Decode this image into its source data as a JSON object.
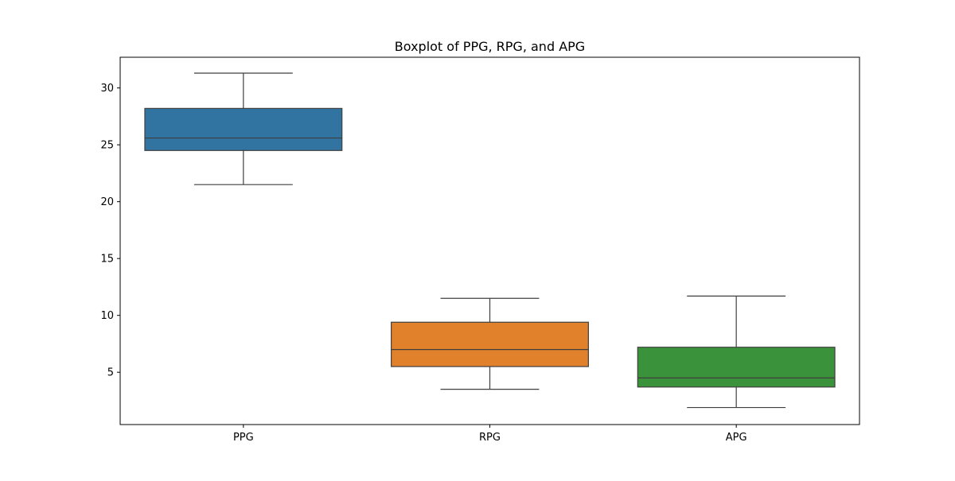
{
  "chart_data": {
    "type": "boxplot",
    "title": "Boxplot of PPG, RPG, and APG",
    "xlabel": "",
    "ylabel": "",
    "categories": [
      "PPG",
      "RPG",
      "APG"
    ],
    "boxes": [
      {
        "category": "PPG",
        "whisker_low": 21.5,
        "q1": 24.5,
        "median": 25.6,
        "q3": 28.2,
        "whisker_high": 31.3,
        "color": "#3274a1"
      },
      {
        "category": "RPG",
        "whisker_low": 3.5,
        "q1": 5.5,
        "median": 7.0,
        "q3": 9.4,
        "whisker_high": 11.5,
        "color": "#e1812c"
      },
      {
        "category": "APG",
        "whisker_low": 1.9,
        "q1": 3.7,
        "median": 4.5,
        "q3": 7.2,
        "whisker_high": 11.7,
        "color": "#3a923a"
      }
    ],
    "ylim": [
      0.4,
      32.7
    ],
    "yticks": [
      5,
      10,
      15,
      20,
      25,
      30
    ],
    "grid": false,
    "line_color": "#3f3f3f"
  }
}
